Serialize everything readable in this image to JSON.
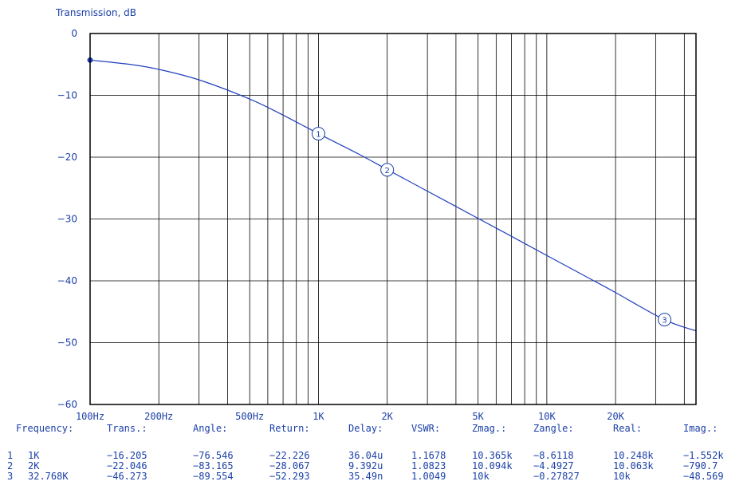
{
  "chart_data": {
    "type": "line",
    "ylabel": "Transmission, dB",
    "y_ticks": [
      "0",
      "−10",
      "−20",
      "−30",
      "−40",
      "−50",
      "−60"
    ],
    "y_tick_values": [
      0,
      -10,
      -20,
      -30,
      -40,
      -50,
      -60
    ],
    "ylim": [
      -60,
      0
    ],
    "x_scale": "log",
    "xlim_hz": [
      100,
      45000
    ],
    "x_ticks": [
      {
        "label": "100Hz",
        "hz": 100
      },
      {
        "label": "200Hz",
        "hz": 200
      },
      {
        "label": "500Hz",
        "hz": 500
      },
      {
        "label": "1K",
        "hz": 1000
      },
      {
        "label": "2K",
        "hz": 2000
      },
      {
        "label": "5K",
        "hz": 5000
      },
      {
        "label": "10K",
        "hz": 10000
      },
      {
        "label": "20K",
        "hz": 20000
      }
    ],
    "grid": true,
    "series": [
      {
        "color": "#1f3fbf",
        "x_hz": [
          100,
          150,
          200,
          300,
          500,
          700,
          1000,
          1500,
          2000,
          3000,
          5000,
          7000,
          10000,
          15000,
          20000,
          32768,
          45000
        ],
        "y_db": [
          -4.3,
          -5.0,
          -5.8,
          -7.5,
          -10.6,
          -13.2,
          -16.2,
          -19.5,
          -22.0,
          -25.5,
          -29.9,
          -32.8,
          -35.9,
          -39.4,
          -41.9,
          -46.3,
          -48.1
        ]
      }
    ],
    "start_point": {
      "x_hz": 100,
      "y_db": -4.3
    },
    "markers": [
      {
        "id": "1",
        "x_hz": 1000,
        "y_db": -16.205
      },
      {
        "id": "2",
        "x_hz": 2000,
        "y_db": -22.046
      },
      {
        "id": "3",
        "x_hz": 32768,
        "y_db": -46.273
      }
    ]
  },
  "table": {
    "headers": [
      "Frequency:",
      "Trans.:",
      "Angle:",
      "Return:",
      "Delay:",
      "VSWR:",
      "Zmag.:",
      "Zangle:",
      "Real:",
      "Imag.:"
    ],
    "rows": [
      {
        "idx": "1",
        "freq": "1K",
        "trans": "−16.205",
        "angle": "−76.546",
        "ret": "−22.226",
        "delay": "36.04u",
        "vswr": "1.1678",
        "zmag": "10.365k",
        "zangle": "−8.6118",
        "real": "10.248k",
        "imag": "−1.552k"
      },
      {
        "idx": "2",
        "freq": "2K",
        "trans": "−22.046",
        "angle": "−83.165",
        "ret": "−28.067",
        "delay": "9.392u",
        "vswr": "1.0823",
        "zmag": "10.094k",
        "zangle": "−4.4927",
        "real": "10.063k",
        "imag": "−790.7"
      },
      {
        "idx": "3",
        "freq": "32.768K",
        "trans": "−46.273",
        "angle": "−89.554",
        "ret": "−52.293",
        "delay": "35.49n",
        "vswr": "1.0049",
        "zmag": "10k",
        "zangle": "−0.27827",
        "real": "10k",
        "imag": "−48.569"
      }
    ]
  }
}
